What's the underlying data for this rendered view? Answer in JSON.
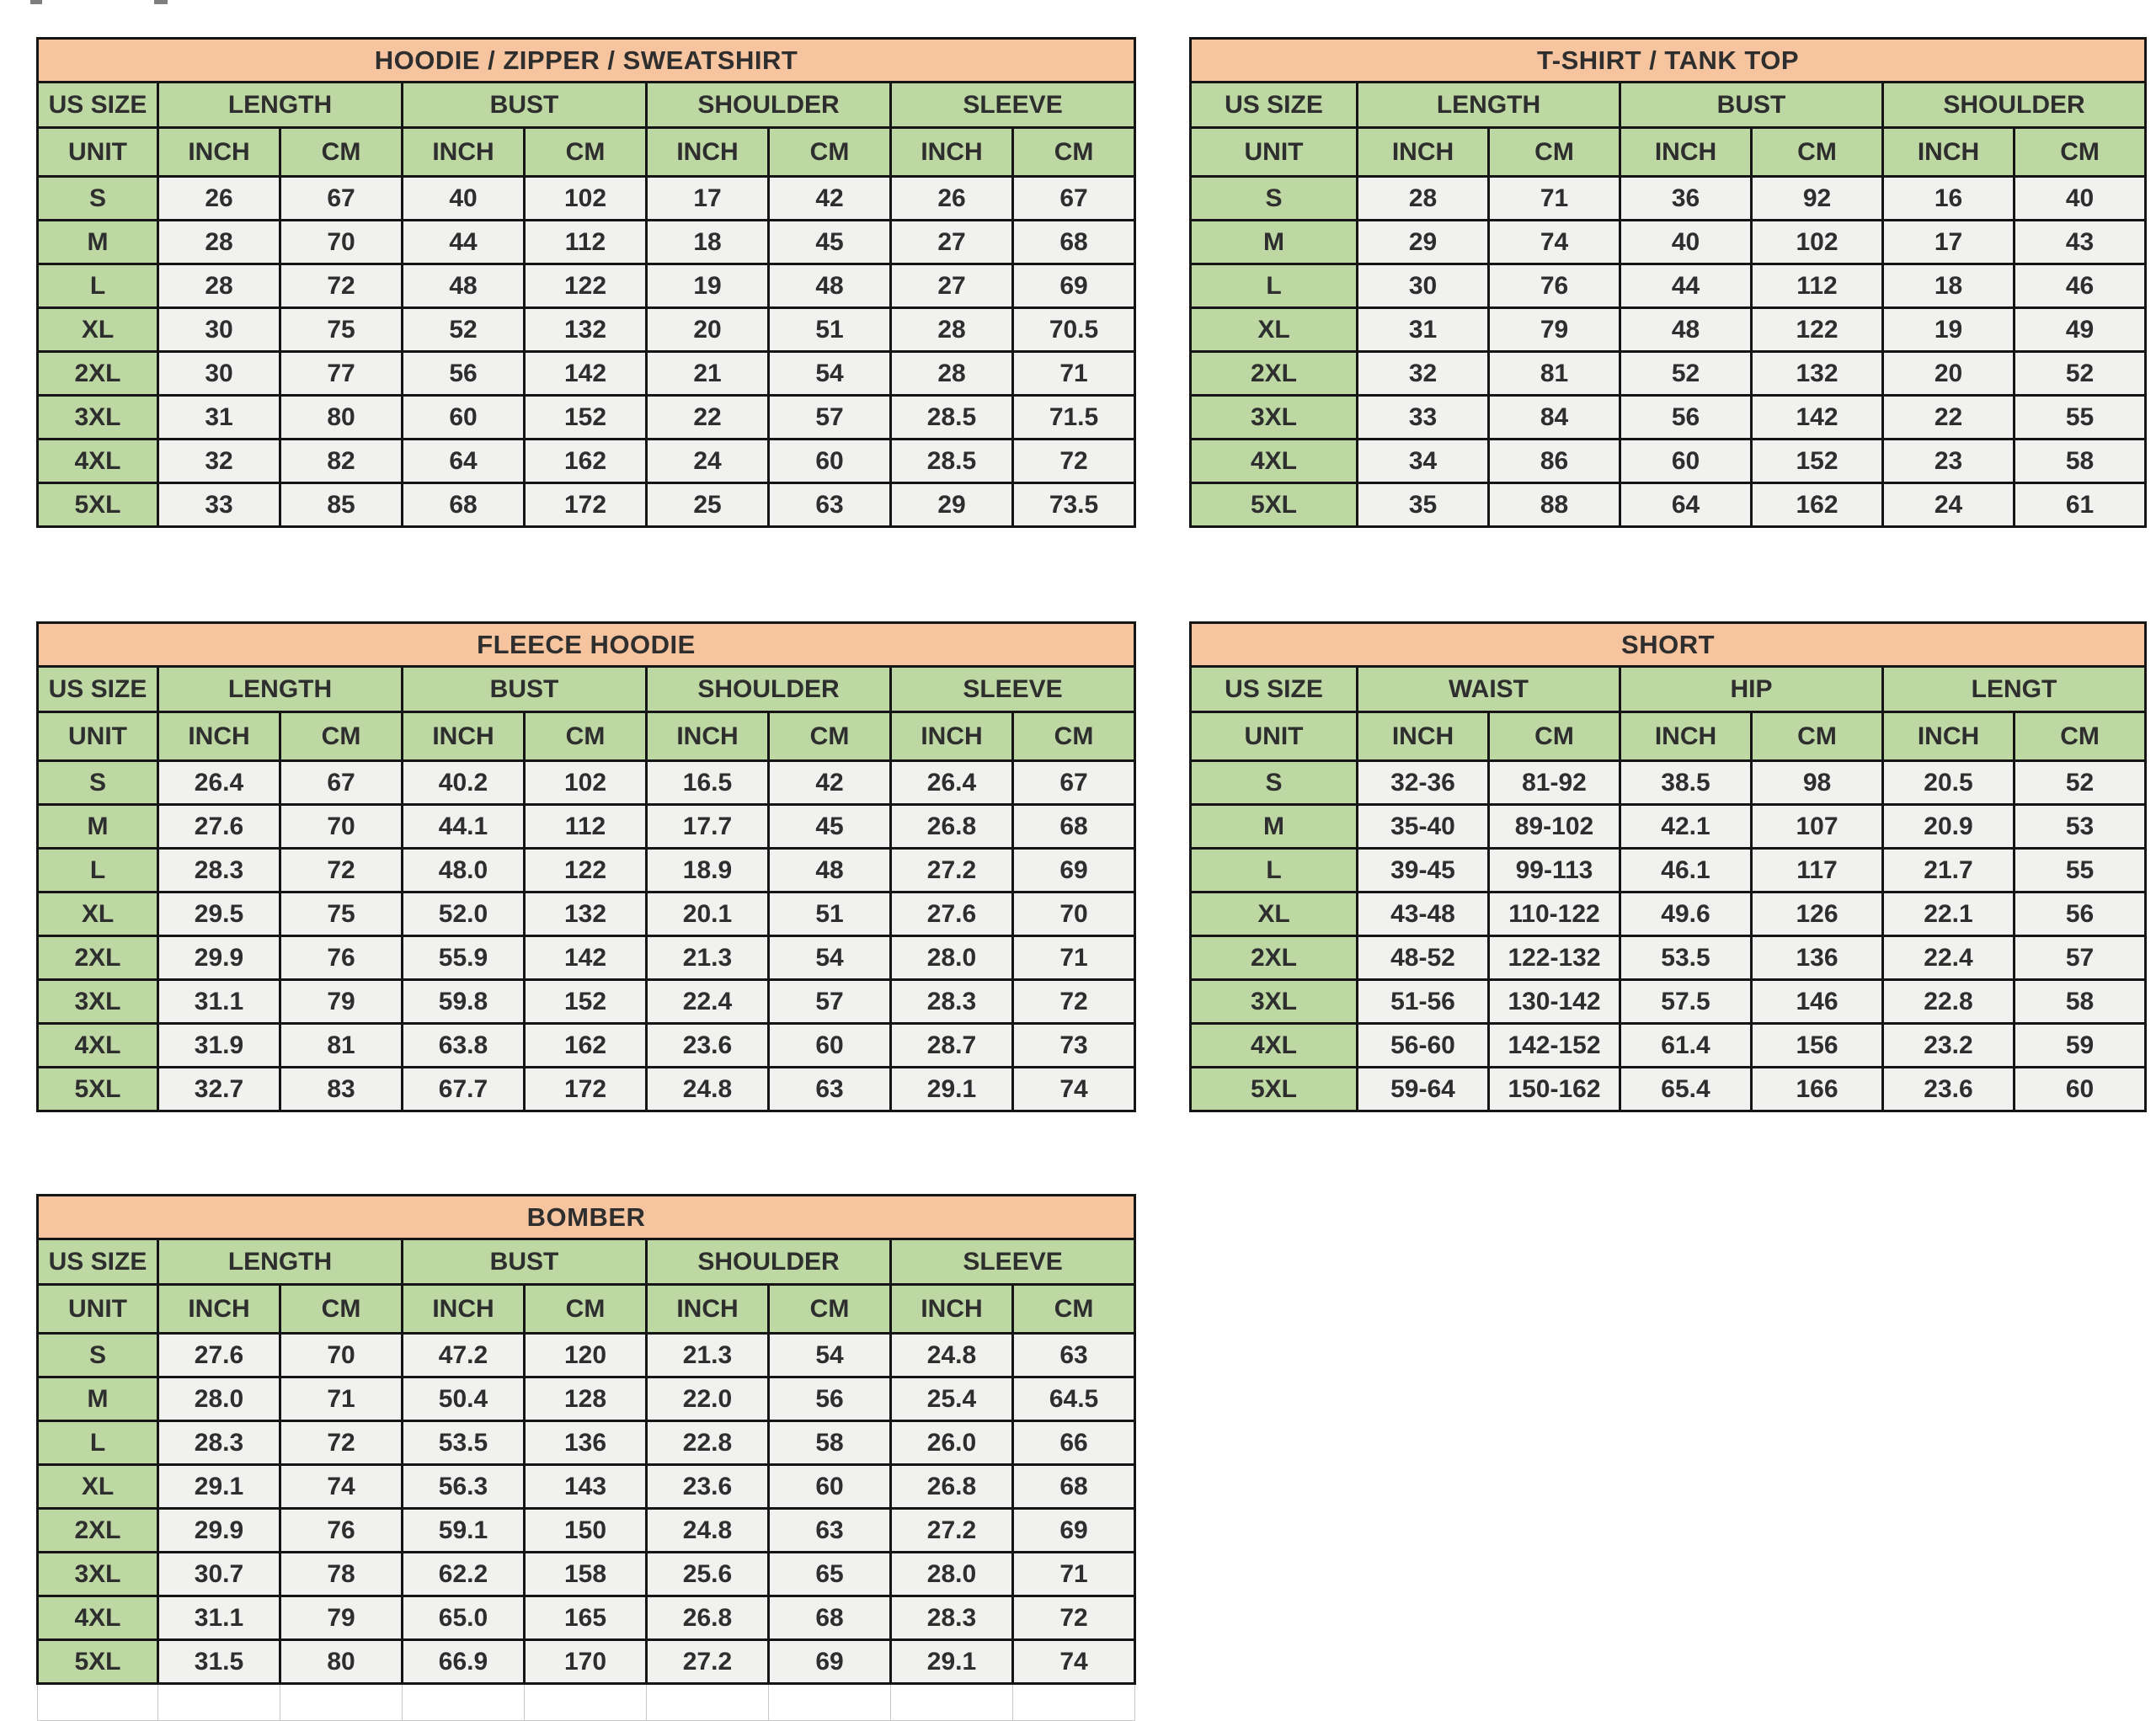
{
  "colors": {
    "title_bg": "#f6c5a0",
    "header_bg": "#bdd8a3",
    "row_bg": "#f1f1ef",
    "size_cell_bg": "#bdd8a3",
    "border": "#151515",
    "text": "#2e2e2e",
    "ghost_border": "#c8c8c8"
  },
  "tables": [
    {
      "id": "hoodie-zipper-sweatshirt",
      "title": "HOODIE / ZIPPER / SWEATSHIRT",
      "size_header": "US SIZE",
      "unit_label": "UNIT",
      "units": [
        "INCH",
        "CM"
      ],
      "groups": [
        "LENGTH",
        "BUST",
        "SHOULDER",
        "SLEEVE"
      ],
      "rows": [
        {
          "size": "S",
          "values": [
            "26",
            "67",
            "40",
            "102",
            "17",
            "42",
            "26",
            "67"
          ]
        },
        {
          "size": "M",
          "values": [
            "28",
            "70",
            "44",
            "112",
            "18",
            "45",
            "27",
            "68"
          ]
        },
        {
          "size": "L",
          "values": [
            "28",
            "72",
            "48",
            "122",
            "19",
            "48",
            "27",
            "69"
          ]
        },
        {
          "size": "XL",
          "values": [
            "30",
            "75",
            "52",
            "132",
            "20",
            "51",
            "28",
            "70.5"
          ]
        },
        {
          "size": "2XL",
          "values": [
            "30",
            "77",
            "56",
            "142",
            "21",
            "54",
            "28",
            "71"
          ]
        },
        {
          "size": "3XL",
          "values": [
            "31",
            "80",
            "60",
            "152",
            "22",
            "57",
            "28.5",
            "71.5"
          ]
        },
        {
          "size": "4XL",
          "values": [
            "32",
            "82",
            "64",
            "162",
            "24",
            "60",
            "28.5",
            "72"
          ]
        },
        {
          "size": "5XL",
          "values": [
            "33",
            "85",
            "68",
            "172",
            "25",
            "63",
            "29",
            "73.5"
          ]
        }
      ],
      "trailing_empty_row": false
    },
    {
      "id": "tshirt-tanktop",
      "title": "T-SHIRT / TANK TOP",
      "size_header": "US SIZE",
      "unit_label": "UNIT",
      "units": [
        "INCH",
        "CM"
      ],
      "groups": [
        "LENGTH",
        "BUST",
        "SHOULDER"
      ],
      "rows": [
        {
          "size": "S",
          "values": [
            "28",
            "71",
            "36",
            "92",
            "16",
            "40"
          ]
        },
        {
          "size": "M",
          "values": [
            "29",
            "74",
            "40",
            "102",
            "17",
            "43"
          ]
        },
        {
          "size": "L",
          "values": [
            "30",
            "76",
            "44",
            "112",
            "18",
            "46"
          ]
        },
        {
          "size": "XL",
          "values": [
            "31",
            "79",
            "48",
            "122",
            "19",
            "49"
          ]
        },
        {
          "size": "2XL",
          "values": [
            "32",
            "81",
            "52",
            "132",
            "20",
            "52"
          ]
        },
        {
          "size": "3XL",
          "values": [
            "33",
            "84",
            "56",
            "142",
            "22",
            "55"
          ]
        },
        {
          "size": "4XL",
          "values": [
            "34",
            "86",
            "60",
            "152",
            "23",
            "58"
          ]
        },
        {
          "size": "5XL",
          "values": [
            "35",
            "88",
            "64",
            "162",
            "24",
            "61"
          ]
        }
      ],
      "trailing_empty_row": false
    },
    {
      "id": "fleece-hoodie",
      "title": "FLEECE HOODIE",
      "size_header": "US SIZE",
      "unit_label": "UNIT",
      "units": [
        "INCH",
        "CM"
      ],
      "groups": [
        "LENGTH",
        "BUST",
        "SHOULDER",
        "SLEEVE"
      ],
      "rows": [
        {
          "size": "S",
          "values": [
            "26.4",
            "67",
            "40.2",
            "102",
            "16.5",
            "42",
            "26.4",
            "67"
          ]
        },
        {
          "size": "M",
          "values": [
            "27.6",
            "70",
            "44.1",
            "112",
            "17.7",
            "45",
            "26.8",
            "68"
          ]
        },
        {
          "size": "L",
          "values": [
            "28.3",
            "72",
            "48.0",
            "122",
            "18.9",
            "48",
            "27.2",
            "69"
          ]
        },
        {
          "size": "XL",
          "values": [
            "29.5",
            "75",
            "52.0",
            "132",
            "20.1",
            "51",
            "27.6",
            "70"
          ]
        },
        {
          "size": "2XL",
          "values": [
            "29.9",
            "76",
            "55.9",
            "142",
            "21.3",
            "54",
            "28.0",
            "71"
          ]
        },
        {
          "size": "3XL",
          "values": [
            "31.1",
            "79",
            "59.8",
            "152",
            "22.4",
            "57",
            "28.3",
            "72"
          ]
        },
        {
          "size": "4XL",
          "values": [
            "31.9",
            "81",
            "63.8",
            "162",
            "23.6",
            "60",
            "28.7",
            "73"
          ]
        },
        {
          "size": "5XL",
          "values": [
            "32.7",
            "83",
            "67.7",
            "172",
            "24.8",
            "63",
            "29.1",
            "74"
          ]
        }
      ],
      "trailing_empty_row": false
    },
    {
      "id": "short",
      "title": "SHORT",
      "size_header": "US SIZE",
      "unit_label": "UNIT",
      "units": [
        "INCH",
        "CM"
      ],
      "groups": [
        "WAIST",
        "HIP",
        "LENGT"
      ],
      "rows": [
        {
          "size": "S",
          "values": [
            "32-36",
            "81-92",
            "38.5",
            "98",
            "20.5",
            "52"
          ]
        },
        {
          "size": "M",
          "values": [
            "35-40",
            "89-102",
            "42.1",
            "107",
            "20.9",
            "53"
          ]
        },
        {
          "size": "L",
          "values": [
            "39-45",
            "99-113",
            "46.1",
            "117",
            "21.7",
            "55"
          ]
        },
        {
          "size": "XL",
          "values": [
            "43-48",
            "110-122",
            "49.6",
            "126",
            "22.1",
            "56"
          ]
        },
        {
          "size": "2XL",
          "values": [
            "48-52",
            "122-132",
            "53.5",
            "136",
            "22.4",
            "57"
          ]
        },
        {
          "size": "3XL",
          "values": [
            "51-56",
            "130-142",
            "57.5",
            "146",
            "22.8",
            "58"
          ]
        },
        {
          "size": "4XL",
          "values": [
            "56-60",
            "142-152",
            "61.4",
            "156",
            "23.2",
            "59"
          ]
        },
        {
          "size": "5XL",
          "values": [
            "59-64",
            "150-162",
            "65.4",
            "166",
            "23.6",
            "60"
          ]
        }
      ],
      "trailing_empty_row": false
    },
    {
      "id": "bomber",
      "title": "BOMBER",
      "size_header": "US SIZE",
      "unit_label": "UNIT",
      "units": [
        "INCH",
        "CM"
      ],
      "groups": [
        "LENGTH",
        "BUST",
        "SHOULDER",
        "SLEEVE"
      ],
      "rows": [
        {
          "size": "S",
          "values": [
            "27.6",
            "70",
            "47.2",
            "120",
            "21.3",
            "54",
            "24.8",
            "63"
          ]
        },
        {
          "size": "M",
          "values": [
            "28.0",
            "71",
            "50.4",
            "128",
            "22.0",
            "56",
            "25.4",
            "64.5"
          ]
        },
        {
          "size": "L",
          "values": [
            "28.3",
            "72",
            "53.5",
            "136",
            "22.8",
            "58",
            "26.0",
            "66"
          ]
        },
        {
          "size": "XL",
          "values": [
            "29.1",
            "74",
            "56.3",
            "143",
            "23.6",
            "60",
            "26.8",
            "68"
          ]
        },
        {
          "size": "2XL",
          "values": [
            "29.9",
            "76",
            "59.1",
            "150",
            "24.8",
            "63",
            "27.2",
            "69"
          ]
        },
        {
          "size": "3XL",
          "values": [
            "30.7",
            "78",
            "62.2",
            "158",
            "25.6",
            "65",
            "28.0",
            "71"
          ]
        },
        {
          "size": "4XL",
          "values": [
            "31.1",
            "79",
            "65.0",
            "165",
            "26.8",
            "68",
            "28.3",
            "72"
          ]
        },
        {
          "size": "5XL",
          "values": [
            "31.5",
            "80",
            "66.9",
            "170",
            "27.2",
            "69",
            "29.1",
            "74"
          ]
        }
      ],
      "trailing_empty_row": true
    }
  ]
}
